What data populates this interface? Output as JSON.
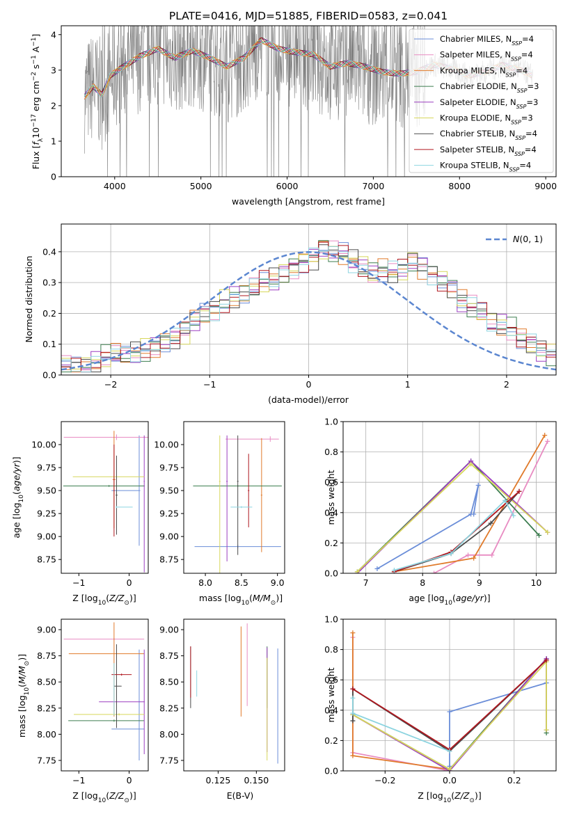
{
  "title": "PLATE=0416, MJD=51885, FIBERID=0583, z=0.041",
  "palette": {
    "c_miles": "#6a8dd8",
    "s_miles": "#e88bc2",
    "k_miles": "#e07a2a",
    "c_elodie": "#3c7d4f",
    "s_elodie": "#9b3ec0",
    "k_elodie": "#d6d65a",
    "c_stelib": "#4a4a4a",
    "s_stelib": "#b0171f",
    "k_stelib": "#8cd4e0",
    "data_gray": "#7f7f7f",
    "gauss": "#5b86d0",
    "grid": "#b0b0b0"
  },
  "legend_labels": [
    "Chabrier MILES, N_SSP=4",
    "Salpeter MILES, N_SSP=4",
    "Kroupa MILES, N_SSP=4",
    "Chabrier ELODIE, N_SSP=3",
    "Salpeter ELODIE, N_SSP=3",
    "Kroupa ELODIE, N_SSP=3",
    "Chabrier STELIB, N_SSP=4",
    "Salpeter STELIB, N_SSP=4",
    "Kroupa STELIB, N_SSP=4"
  ],
  "chart_data": [
    {
      "id": "spectrum",
      "type": "line",
      "xlabel": "wavelength [Angstrom, rest frame]",
      "ylabel": "Flux [f_λ 10^-17 erg cm^-2 s^-1 A^-1]",
      "xlim": [
        3380,
        9120
      ],
      "ylim": [
        0,
        4.25
      ],
      "xticks": [
        4000,
        5000,
        6000,
        7000,
        8000,
        9000
      ],
      "yticks": [
        0,
        1,
        2,
        3,
        4
      ],
      "legend": "top-right",
      "continuum": [
        [
          3650,
          2.25
        ],
        [
          3750,
          2.55
        ],
        [
          3850,
          2.3
        ],
        [
          3950,
          2.85
        ],
        [
          4100,
          3.1
        ],
        [
          4300,
          3.4
        ],
        [
          4500,
          3.6
        ],
        [
          4700,
          3.35
        ],
        [
          4900,
          3.55
        ],
        [
          5100,
          3.35
        ],
        [
          5300,
          3.1
        ],
        [
          5500,
          3.35
        ],
        [
          5700,
          3.85
        ],
        [
          5900,
          3.6
        ],
        [
          6100,
          3.5
        ],
        [
          6300,
          3.45
        ],
        [
          6500,
          3.1
        ],
        [
          6700,
          3.2
        ],
        [
          6900,
          3.1
        ],
        [
          7100,
          2.95
        ],
        [
          7300,
          2.9
        ],
        [
          7500,
          2.95
        ],
        [
          7700,
          3.15
        ],
        [
          7900,
          3.05
        ],
        [
          8100,
          2.85
        ],
        [
          8300,
          2.95
        ],
        [
          8500,
          3.15
        ],
        [
          8700,
          3.0
        ],
        [
          8850,
          2.85
        ]
      ]
    },
    {
      "id": "residuals",
      "type": "bar",
      "xlabel": "(data-model)/error",
      "ylabel": "Normed distribution",
      "xlim": [
        -2.5,
        2.5
      ],
      "ylim": [
        0,
        0.49
      ],
      "xticks": [
        -2,
        -1,
        0,
        1,
        2
      ],
      "yticks": [
        0.0,
        0.1,
        0.2,
        0.3,
        0.4
      ],
      "bin_width": 0.1,
      "legend": "top-right",
      "gaussian_label": "N(0,1)",
      "histogram": [
        0.03,
        0.03,
        0.03,
        0.04,
        0.06,
        0.07,
        0.06,
        0.07,
        0.08,
        0.09,
        0.11,
        0.12,
        0.14,
        0.18,
        0.2,
        0.21,
        0.24,
        0.25,
        0.26,
        0.28,
        0.3,
        0.31,
        0.33,
        0.35,
        0.37,
        0.38,
        0.41,
        0.4,
        0.39,
        0.37,
        0.35,
        0.33,
        0.34,
        0.33,
        0.34,
        0.37,
        0.35,
        0.33,
        0.31,
        0.28,
        0.24,
        0.22,
        0.2,
        0.17,
        0.16,
        0.15,
        0.12,
        0.1,
        0.08,
        0.07
      ]
    },
    {
      "id": "age_vs_Z",
      "type": "scatter",
      "xlabel": "Z [log10(Z/Z_sun)]",
      "ylabel": "age [log10(age/yr)]",
      "xlim": [
        -1.35,
        0.38
      ],
      "ylim": [
        8.6,
        10.25
      ],
      "xticks": [
        -1,
        0
      ],
      "yticks": [
        8.75,
        9.0,
        9.25,
        9.5,
        9.75,
        10.0
      ],
      "points": [
        {
          "x": 0.2,
          "y": 9.5,
          "xerr": [
            0.55,
            0.02
          ],
          "yerr": [
            0.6,
            0.6
          ]
        },
        {
          "x": -0.25,
          "y": 10.08,
          "xerr": [
            1.05,
            0.63
          ],
          "yerr": [
            0.03,
            0.03
          ]
        },
        {
          "x": -0.3,
          "y": 9.62,
          "xerr": [
            0.03,
            0.03
          ],
          "yerr": [
            0.53,
            0.53
          ]
        },
        {
          "x": -0.4,
          "y": 9.55,
          "xerr": [
            0.91,
            0.71
          ],
          "yerr": [
            0.01,
            0.01
          ]
        },
        {
          "x": 0.3,
          "y": 9.6,
          "xerr": [
            0.01,
            0.01
          ],
          "yerr": [
            0.99,
            0.5
          ]
        },
        {
          "x": -0.3,
          "y": 9.65,
          "xerr": [
            0.82,
            0.6
          ],
          "yerr": [
            0.01,
            0.01
          ]
        },
        {
          "x": -0.25,
          "y": 9.45,
          "xerr": [
            0.02,
            0.02
          ],
          "yerr": [
            0.43,
            0.43
          ]
        },
        {
          "x": -0.3,
          "y": 9.5,
          "xerr": [
            0.01,
            0.01
          ],
          "yerr": [
            0.5,
            0.5
          ]
        },
        {
          "x": -0.25,
          "y": 9.32,
          "xerr": [
            0.02,
            0.32
          ],
          "yerr": [
            0.01,
            0.01
          ]
        }
      ]
    },
    {
      "id": "age_vs_mass",
      "type": "scatter",
      "xlabel": "mass [log10(M/M_sun)]",
      "ylabel": "",
      "xlim": [
        7.7,
        9.1
      ],
      "ylim": [
        8.6,
        10.25
      ],
      "xticks": [
        8.0,
        8.5,
        9.0
      ],
      "yticks": [
        8.75,
        9.0,
        9.25,
        9.5,
        9.75,
        10.0
      ],
      "points": [
        {
          "x": 8.45,
          "y": 8.89,
          "xerr": [
            0.6,
            0.6
          ],
          "yerr": [
            0.02,
            0.02
          ]
        },
        {
          "x": 8.9,
          "y": 10.06,
          "xerr": [
            0.62,
            0.12
          ],
          "yerr": [
            0.03,
            0.03
          ]
        },
        {
          "x": 8.78,
          "y": 9.45,
          "xerr": [
            0.01,
            0.01
          ],
          "yerr": [
            0.62,
            0.62
          ]
        },
        {
          "x": 8.45,
          "y": 9.55,
          "xerr": [
            0.62,
            0.61
          ],
          "yerr": [
            0.01,
            0.01
          ]
        },
        {
          "x": 8.3,
          "y": 9.6,
          "xerr": [
            0.01,
            0.01
          ],
          "yerr": [
            0.87,
            0.5
          ]
        },
        {
          "x": 8.2,
          "y": 9.6,
          "xerr": [
            0.01,
            0.01
          ],
          "yerr": [
            1.0,
            0.5
          ]
        },
        {
          "x": 8.45,
          "y": 9.6,
          "xerr": [
            0.01,
            0.01
          ],
          "yerr": [
            0.8,
            0.5
          ]
        },
        {
          "x": 8.6,
          "y": 9.5,
          "xerr": [
            0.01,
            0.01
          ],
          "yerr": [
            0.4,
            0.4
          ]
        },
        {
          "x": 8.5,
          "y": 9.32,
          "xerr": [
            0.15,
            0.15
          ],
          "yerr": [
            0.01,
            0.01
          ]
        }
      ]
    },
    {
      "id": "weight_vs_age",
      "type": "line",
      "xlabel": "age [log10(age/yr)]",
      "ylabel": "mass weight",
      "xlim": [
        6.6,
        10.35
      ],
      "ylim": [
        0,
        1.0
      ],
      "xticks": [
        7,
        8,
        9,
        10
      ],
      "yticks": [
        0.0,
        0.2,
        0.4,
        0.6,
        0.8,
        1.0
      ],
      "series": [
        {
          "x": [
            7.2,
            8.85,
            8.98,
            8.9
          ],
          "y": [
            0.03,
            0.39,
            0.58,
            0.39
          ]
        },
        {
          "x": [
            8.2,
            8.8,
            9.22,
            10.2
          ],
          "y": [
            0.0,
            0.12,
            0.12,
            0.87
          ]
        },
        {
          "x": [
            7.5,
            8.9,
            10.15
          ],
          "y": [
            0.01,
            0.1,
            0.91
          ]
        },
        {
          "x": [
            6.85,
            8.85,
            10.05
          ],
          "y": [
            0.01,
            0.74,
            0.25
          ]
        },
        {
          "x": [
            6.85,
            8.85,
            10.2
          ],
          "y": [
            0.0,
            0.74,
            0.27
          ]
        },
        {
          "x": [
            6.85,
            8.85,
            10.2
          ],
          "y": [
            0.01,
            0.72,
            0.27
          ]
        },
        {
          "x": [
            7.5,
            8.5,
            9.2,
            9.7
          ],
          "y": [
            0.01,
            0.13,
            0.33,
            0.54
          ]
        },
        {
          "x": [
            7.5,
            8.5,
            9.7
          ],
          "y": [
            0.01,
            0.14,
            0.54
          ]
        },
        {
          "x": [
            7.5,
            8.5,
            9.45,
            9.6
          ],
          "y": [
            0.02,
            0.13,
            0.48,
            0.38
          ]
        }
      ]
    },
    {
      "id": "mass_vs_Z",
      "type": "scatter",
      "xlabel": "Z [log10(Z/Z_sun)]",
      "ylabel": "mass [log10(M/M_sun)]",
      "xlim": [
        -1.35,
        0.38
      ],
      "ylim": [
        7.65,
        9.1
      ],
      "xticks": [
        -1,
        0
      ],
      "yticks": [
        7.75,
        8.0,
        8.25,
        8.5,
        8.75,
        9.0
      ],
      "points": [
        {
          "x": 0.2,
          "y": 8.05,
          "xerr": [
            0.55,
            0.1
          ],
          "yerr": [
            0.3,
            0.76
          ]
        },
        {
          "x": -0.3,
          "y": 8.91,
          "xerr": [
            1.0,
            0.6
          ],
          "yerr": [
            0.01,
            0.01
          ]
        },
        {
          "x": -0.3,
          "y": 8.77,
          "xerr": [
            0.9,
            0.6
          ],
          "yerr": [
            0.6,
            0.3
          ]
        },
        {
          "x": -0.3,
          "y": 8.13,
          "xerr": [
            0.91,
            0.6
          ],
          "yerr": [
            0.01,
            0.01
          ]
        },
        {
          "x": 0.3,
          "y": 8.31,
          "xerr": [
            0.9,
            0.01
          ],
          "yerr": [
            0.5,
            0.5
          ]
        },
        {
          "x": -0.2,
          "y": 8.19,
          "xerr": [
            0.9,
            0.5
          ],
          "yerr": [
            0.01,
            0.01
          ]
        },
        {
          "x": -0.25,
          "y": 8.46,
          "xerr": [
            0.05,
            0.1
          ],
          "yerr": [
            0.4,
            0.4
          ]
        },
        {
          "x": -0.15,
          "y": 8.57,
          "xerr": [
            0.2,
            0.2
          ],
          "yerr": [
            0.01,
            0.01
          ]
        },
        {
          "x": -0.3,
          "y": 8.43,
          "xerr": [
            0.01,
            0.01
          ],
          "yerr": [
            0.25,
            0.25
          ]
        }
      ]
    },
    {
      "id": "mass_vs_ebv",
      "type": "scatter",
      "xlabel": "E(B-V)",
      "ylabel": "",
      "xlim": [
        0.1025,
        0.1685
      ],
      "ylim": [
        7.65,
        9.1
      ],
      "xticks": [
        0.125,
        0.15
      ],
      "yticks": [
        7.75,
        8.0,
        8.25,
        8.5,
        8.75,
        9.0
      ],
      "points": [
        {
          "x": 0.164,
          "y": 8.3,
          "yerr": [
            0.58,
            0.52
          ]
        },
        {
          "x": 0.144,
          "y": 8.6,
          "yerr": [
            0.33,
            0.46
          ]
        },
        {
          "x": 0.14,
          "y": 8.6,
          "yerr": [
            0.43,
            0.43
          ]
        },
        {
          "x": 0.157,
          "y": 8.5,
          "yerr": [
            0.25,
            0.34
          ]
        },
        {
          "x": 0.157,
          "y": 8.3,
          "yerr": [
            0.47,
            0.53
          ]
        },
        {
          "x": 0.157,
          "y": 8.3,
          "yerr": [
            0.55,
            0.43
          ]
        },
        {
          "x": 0.107,
          "y": 8.5,
          "yerr": [
            0.25,
            0.34
          ]
        },
        {
          "x": 0.107,
          "y": 8.6,
          "yerr": [
            0.25,
            0.24
          ]
        },
        {
          "x": 0.111,
          "y": 8.48,
          "yerr": [
            0.12,
            0.13
          ]
        }
      ]
    },
    {
      "id": "weight_vs_Z",
      "type": "line",
      "xlabel": "Z [log10(Z/Z_sun)]",
      "ylabel": "mass weight",
      "xlim": [
        -0.33,
        0.33
      ],
      "ylim": [
        0,
        1.0
      ],
      "xticks": [
        -0.2,
        0.0,
        0.2
      ],
      "yticks": [
        0.0,
        0.2,
        0.4,
        0.6,
        0.8,
        1.0
      ],
      "series": [
        {
          "x": [
            0.3,
            0.0,
            0.0,
            0.0
          ],
          "y": [
            0.58,
            0.39,
            0.03,
            0.0
          ]
        },
        {
          "x": [
            -0.3,
            -0.3,
            0.0
          ],
          "y": [
            0.88,
            0.12,
            0.0
          ]
        },
        {
          "x": [
            -0.3,
            -0.3,
            0.0
          ],
          "y": [
            0.91,
            0.1,
            0.01
          ]
        },
        {
          "x": [
            -0.3,
            0.0,
            0.3,
            0.3
          ],
          "y": [
            0.37,
            0.01,
            0.74,
            0.25
          ]
        },
        {
          "x": [
            -0.3,
            0.0,
            0.3,
            0.3
          ],
          "y": [
            0.37,
            0.0,
            0.74,
            0.27
          ]
        },
        {
          "x": [
            -0.3,
            0.0,
            0.3,
            0.3
          ],
          "y": [
            0.37,
            0.01,
            0.72,
            0.27
          ]
        },
        {
          "x": [
            -0.3,
            -0.3,
            0.0,
            0.3
          ],
          "y": [
            0.33,
            0.54,
            0.13,
            0.73
          ]
        },
        {
          "x": [
            -0.3,
            0.0,
            0.3
          ],
          "y": [
            0.54,
            0.14,
            0.73
          ]
        },
        {
          "x": [
            -0.3,
            -0.3,
            0.0
          ],
          "y": [
            0.48,
            0.38,
            0.13
          ]
        }
      ]
    }
  ]
}
